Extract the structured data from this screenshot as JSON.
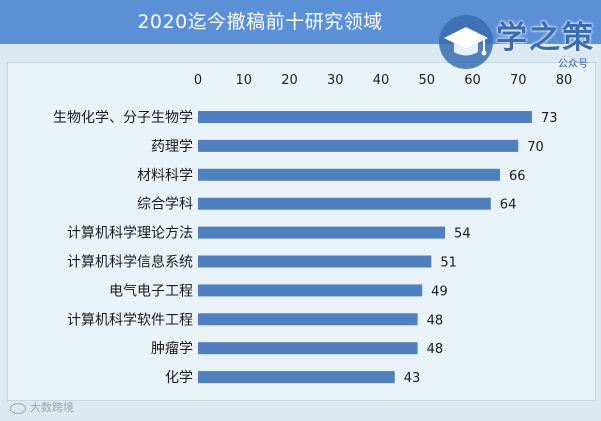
{
  "header": {
    "title": "2020迄今撤稿前十研究领域"
  },
  "branding": {
    "logo_text": "学之策",
    "logo_sub": "公众号",
    "watermark": "大数跨境"
  },
  "colors": {
    "banner": "#5b8fd6",
    "bar": "#4f7fbf",
    "background": "#dbe9f1"
  },
  "chart_data": {
    "type": "bar",
    "orientation": "horizontal",
    "title": "2020迄今撤稿前十研究领域",
    "xlabel": "",
    "ylabel": "",
    "xlim": [
      0,
      80
    ],
    "ticks": [
      0,
      10,
      20,
      30,
      40,
      50,
      60,
      70,
      80
    ],
    "axis_position": "top",
    "grid": false,
    "categories": [
      "生物化学、分子生物学",
      "药理学",
      "材料科学",
      "综合学科",
      "计算机科学理论方法",
      "计算机科学信息系统",
      "电气电子工程",
      "计算机科学软件工程",
      "肿瘤学",
      "化学"
    ],
    "values": [
      73,
      70,
      66,
      64,
      54,
      51,
      49,
      48,
      48,
      43
    ]
  }
}
